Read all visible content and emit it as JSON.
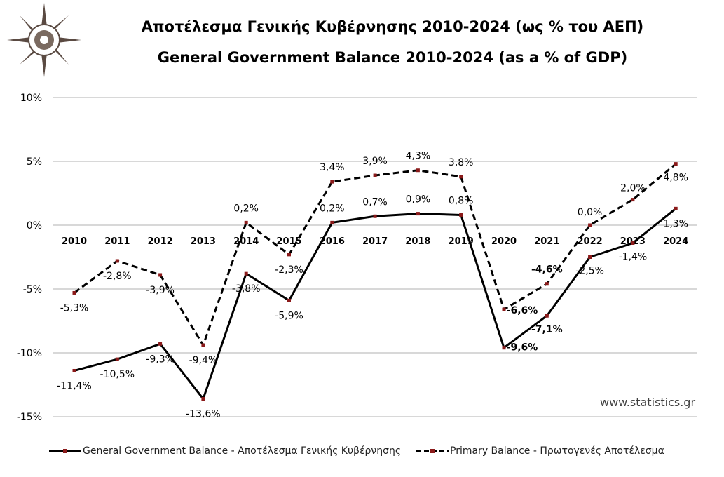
{
  "title_gr": "Αποτέλεσμα Γενικής Κυβέρνησης 2010-2024 (ως % του ΑΕΠ)",
  "title_en": "General Government Balance 2010-2024 (as a % of GDP)",
  "website": "www.statistics.gr",
  "colors": {
    "line": "#000000",
    "marker": "#8b1a1a",
    "grid": "#b0b0b0"
  },
  "chart_data": {
    "type": "line",
    "categories": [
      "2010",
      "2011",
      "2012",
      "2013",
      "2014",
      "2015",
      "2016",
      "2017",
      "2018",
      "2019",
      "2020",
      "2021",
      "2022",
      "2023",
      "2024"
    ],
    "yticks": [
      "10%",
      "5%",
      "0%",
      "-5%",
      "-10%",
      "-15%"
    ],
    "ylim": [
      -15,
      10
    ],
    "grid": true,
    "legend_position": "bottom",
    "series": [
      {
        "name": "General Government Balance - Αποτέλεσμα Γενικής Κυβέρνησης",
        "style": "solid",
        "values": [
          -11.4,
          -10.5,
          -9.3,
          -13.6,
          -3.8,
          -5.9,
          0.2,
          0.7,
          0.9,
          0.8,
          -9.6,
          -7.1,
          -2.5,
          -1.4,
          1.3
        ],
        "labels": [
          "-11,4%",
          "-10,5%",
          "-9,3%",
          "-13,6%",
          "-3,8%",
          "-5,9%",
          "0,2%",
          "0,7%",
          "0,9%",
          "0,8%",
          "-9,6%",
          "-7,1%",
          "-2,5%",
          "-1,4%",
          "1,3%"
        ]
      },
      {
        "name": "Primary Balance - Πρωτογενές Αποτέλεσμα",
        "style": "dashed",
        "values": [
          -5.3,
          -2.8,
          -3.9,
          -9.4,
          0.2,
          -2.3,
          3.4,
          3.9,
          4.3,
          3.8,
          -6.6,
          -4.6,
          0.0,
          2.0,
          4.8
        ],
        "labels": [
          "-5,3%",
          "-2,8%",
          "-3,9%",
          "-9,4%",
          "0,2%",
          "-2,3%",
          "3,4%",
          "3,9%",
          "4,3%",
          "3,8%",
          "-6,6%",
          "-4,6%",
          "0,0%",
          "2,0%",
          "4,8%"
        ]
      }
    ]
  }
}
